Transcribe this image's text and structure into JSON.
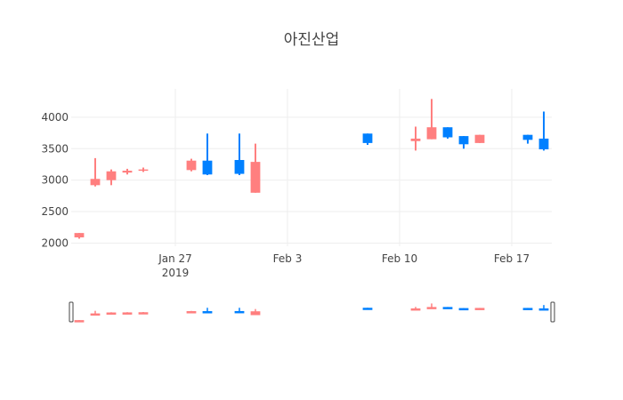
{
  "chart_data": {
    "type": "candlestick",
    "title": "아진산업",
    "xlabel": "",
    "ylabel": "",
    "ylim": [
      1950,
      4450
    ],
    "xlim": [
      "2019-01-20T12:00",
      "2019-02-19T12:00"
    ],
    "grid": true,
    "legend": "none",
    "x_ticks": [
      {
        "date": "2019-01-27",
        "label": "Jan 27",
        "sublabel": "2019"
      },
      {
        "date": "2019-02-03",
        "label": "Feb 3",
        "sublabel": ""
      },
      {
        "date": "2019-02-10",
        "label": "Feb 10",
        "sublabel": ""
      },
      {
        "date": "2019-02-17",
        "label": "Feb 17",
        "sublabel": ""
      }
    ],
    "y_ticks": [
      {
        "value": 2000,
        "label": "2000"
      },
      {
        "value": 2500,
        "label": "2500"
      },
      {
        "value": 3000,
        "label": "3000"
      },
      {
        "value": 3500,
        "label": "3500"
      },
      {
        "value": 4000,
        "label": "4000"
      }
    ],
    "colors": {
      "increasing": "#FF7F7F",
      "decreasing": "#0080FF"
    },
    "candles": [
      {
        "date": "2019-01-21",
        "open": 2090,
        "high": 2160,
        "low": 2070,
        "close": 2160
      },
      {
        "date": "2019-01-22",
        "open": 2920,
        "high": 3350,
        "low": 2900,
        "close": 3020
      },
      {
        "date": "2019-01-23",
        "open": 3000,
        "high": 3170,
        "low": 2920,
        "close": 3140
      },
      {
        "date": "2019-01-24",
        "open": 3120,
        "high": 3180,
        "low": 3090,
        "close": 3150
      },
      {
        "date": "2019-01-25",
        "open": 3150,
        "high": 3200,
        "low": 3130,
        "close": 3170
      },
      {
        "date": "2019-01-28",
        "open": 3160,
        "high": 3340,
        "low": 3140,
        "close": 3310
      },
      {
        "date": "2019-01-29",
        "open": 3310,
        "high": 3740,
        "low": 3080,
        "close": 3090
      },
      {
        "date": "2019-01-31",
        "open": 3320,
        "high": 3740,
        "low": 3080,
        "close": 3100
      },
      {
        "date": "2019-02-01",
        "open": 2800,
        "high": 3580,
        "low": 2800,
        "close": 3290
      },
      {
        "date": "2019-02-08",
        "open": 3740,
        "high": 3740,
        "low": 3560,
        "close": 3590
      },
      {
        "date": "2019-02-11",
        "open": 3620,
        "high": 3850,
        "low": 3470,
        "close": 3660
      },
      {
        "date": "2019-02-12",
        "open": 3650,
        "high": 4290,
        "low": 3650,
        "close": 3840
      },
      {
        "date": "2019-02-13",
        "open": 3840,
        "high": 3840,
        "low": 3660,
        "close": 3680
      },
      {
        "date": "2019-02-14",
        "open": 3700,
        "high": 3700,
        "low": 3500,
        "close": 3570
      },
      {
        "date": "2019-02-15",
        "open": 3590,
        "high": 3720,
        "low": 3590,
        "close": 3720
      },
      {
        "date": "2019-02-18",
        "open": 3720,
        "high": 3720,
        "low": 3580,
        "close": 3640
      },
      {
        "date": "2019-02-19",
        "open": 3660,
        "high": 4090,
        "low": 3470,
        "close": 3490
      }
    ]
  }
}
